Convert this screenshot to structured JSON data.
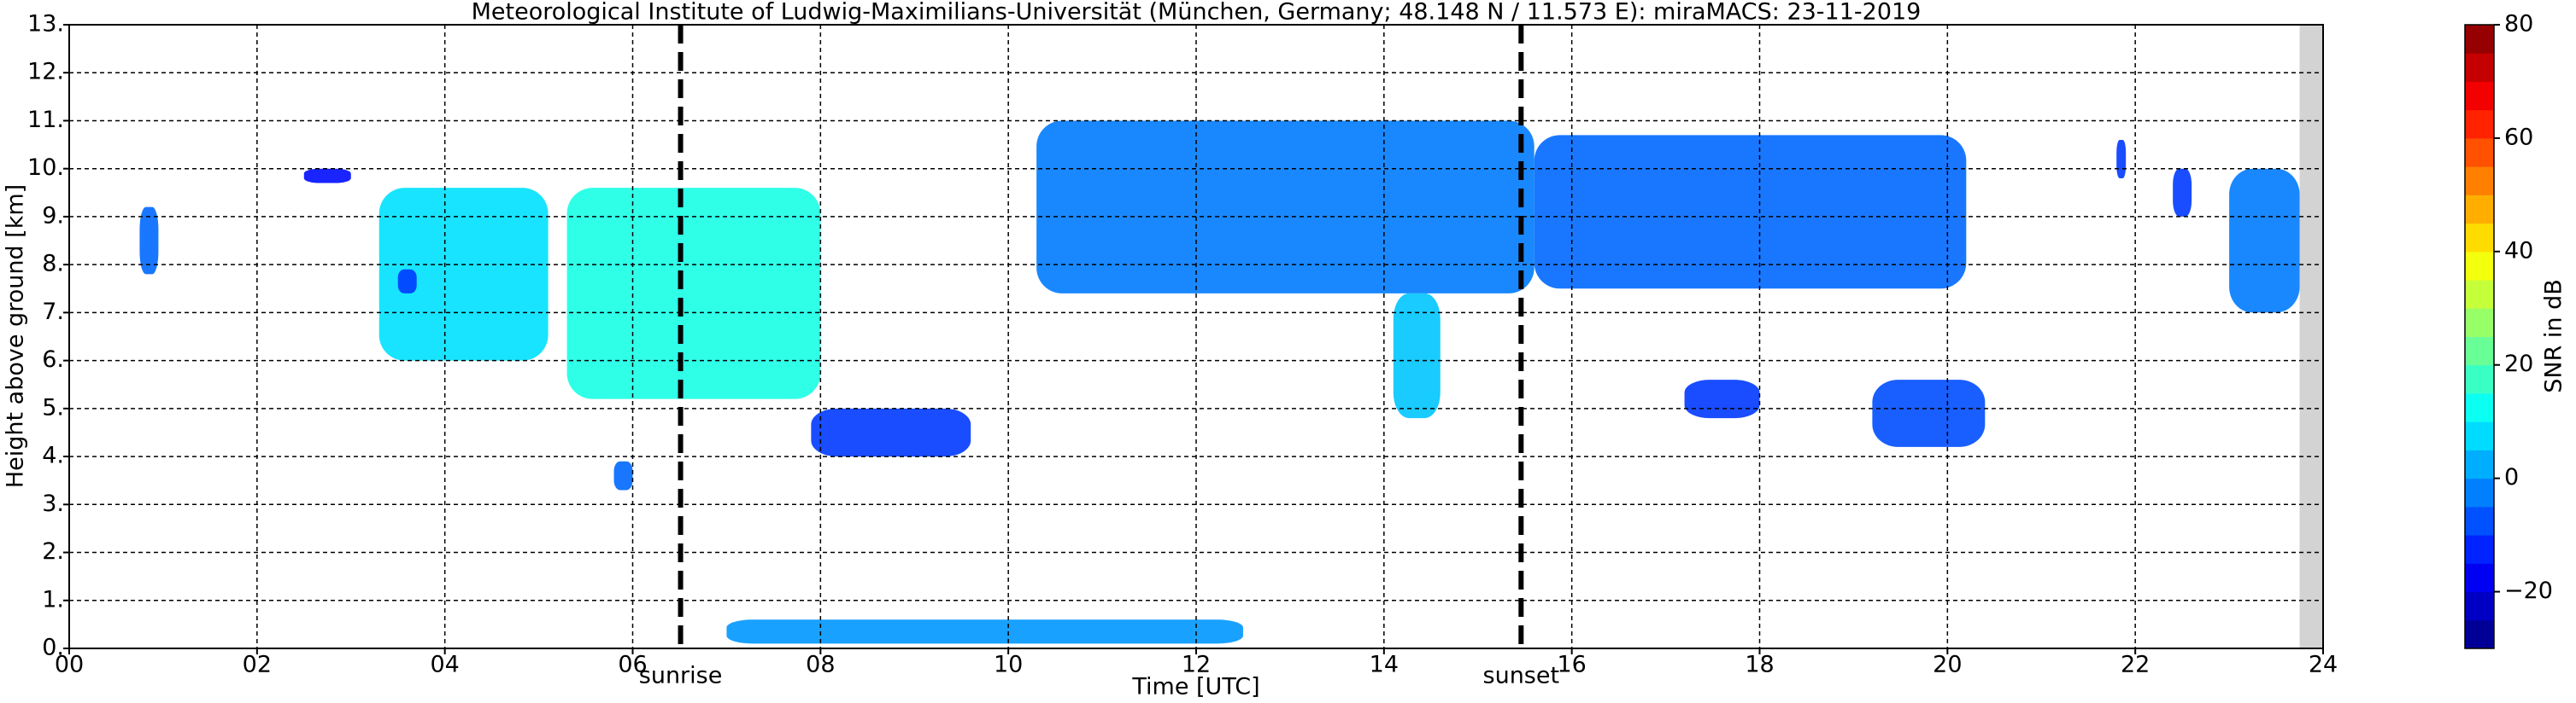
{
  "chart_data": {
    "type": "time-height",
    "title": "Meteorological Institute of Ludwig-Maximilians-Universität (München, Germany; 48.148 N / 11.573 E):    miraMACS: 23-11-2019",
    "xlabel": "Time [UTC]",
    "ylabel": "Height above ground [km]",
    "colorbar_label": "SNR in dB",
    "xlim": [
      0,
      24
    ],
    "ylim": [
      0,
      13
    ],
    "clim": [
      -30,
      80
    ],
    "grid": true,
    "colormap": "jet",
    "xticks": [
      {
        "value": 0,
        "label": "00"
      },
      {
        "value": 2,
        "label": "02"
      },
      {
        "value": 4,
        "label": "04"
      },
      {
        "value": 6,
        "label": "06"
      },
      {
        "value": 8,
        "label": "08"
      },
      {
        "value": 10,
        "label": "10"
      },
      {
        "value": 12,
        "label": "12"
      },
      {
        "value": 14,
        "label": "14"
      },
      {
        "value": 16,
        "label": "16"
      },
      {
        "value": 18,
        "label": "18"
      },
      {
        "value": 20,
        "label": "20"
      },
      {
        "value": 22,
        "label": "22"
      },
      {
        "value": 24,
        "label": "24"
      }
    ],
    "yticks": [
      {
        "value": 0,
        "label": "0."
      },
      {
        "value": 1,
        "label": "1."
      },
      {
        "value": 2,
        "label": "2."
      },
      {
        "value": 3,
        "label": "3."
      },
      {
        "value": 4,
        "label": "4."
      },
      {
        "value": 5,
        "label": "5."
      },
      {
        "value": 6,
        "label": "6."
      },
      {
        "value": 7,
        "label": "7."
      },
      {
        "value": 8,
        "label": "8."
      },
      {
        "value": 9,
        "label": "9."
      },
      {
        "value": 10,
        "label": "10."
      },
      {
        "value": 11,
        "label": "11."
      },
      {
        "value": 12,
        "label": "12."
      },
      {
        "value": 13,
        "label": "13."
      }
    ],
    "cticks": [
      {
        "value": -20,
        "label": "−20"
      },
      0,
      20,
      40,
      60,
      80
    ],
    "markers": [
      {
        "x": 6.51,
        "label": "sunrise"
      },
      {
        "x": 15.46,
        "label": "sunset"
      }
    ],
    "shaded_xlim": [
      23.75,
      24
    ],
    "echoes": [
      {
        "x": [
          0.75,
          0.95
        ],
        "y": [
          7.8,
          9.2
        ],
        "snr": -5
      },
      {
        "x": [
          2.5,
          3.0
        ],
        "y": [
          9.7,
          10.0
        ],
        "snr": -15
      },
      {
        "x": [
          3.3,
          5.1
        ],
        "y": [
          6.0,
          9.6
        ],
        "snr": 8
      },
      {
        "x": [
          3.5,
          3.7
        ],
        "y": [
          7.4,
          7.9
        ],
        "snr": -10
      },
      {
        "x": [
          5.3,
          8.0
        ],
        "y": [
          5.2,
          9.6
        ],
        "snr": 14
      },
      {
        "x": [
          5.8,
          6.0
        ],
        "y": [
          3.3,
          3.9
        ],
        "snr": -5
      },
      {
        "x": [
          7.9,
          9.6
        ],
        "y": [
          4.0,
          5.0
        ],
        "snr": -10
      },
      {
        "x": [
          10.3,
          15.6
        ],
        "y": [
          7.4,
          11.0
        ],
        "snr": -3
      },
      {
        "x": [
          14.1,
          14.6
        ],
        "y": [
          4.8,
          7.4
        ],
        "snr": 5
      },
      {
        "x": [
          15.6,
          20.2
        ],
        "y": [
          7.5,
          10.7
        ],
        "snr": -5
      },
      {
        "x": [
          17.2,
          18.0
        ],
        "y": [
          4.8,
          5.6
        ],
        "snr": -10
      },
      {
        "x": [
          19.2,
          20.4
        ],
        "y": [
          4.2,
          5.6
        ],
        "snr": -8
      },
      {
        "x": [
          21.8,
          21.9
        ],
        "y": [
          9.8,
          10.6
        ],
        "snr": -10
      },
      {
        "x": [
          22.4,
          22.6
        ],
        "y": [
          9.0,
          10.0
        ],
        "snr": -10
      },
      {
        "x": [
          23.0,
          23.75
        ],
        "y": [
          7.0,
          10.0
        ],
        "snr": -3
      },
      {
        "x": [
          7.0,
          12.5
        ],
        "y": [
          0.1,
          0.6
        ],
        "snr": 0
      }
    ]
  }
}
